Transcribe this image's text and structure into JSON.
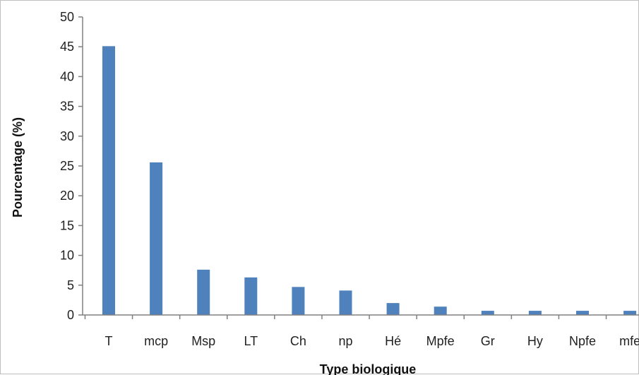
{
  "chart_data": {
    "type": "bar",
    "xlabel": "Type biologique",
    "ylabel": "Pourcentage (%)",
    "ylim": [
      0,
      50
    ],
    "yticks": [
      0,
      5,
      10,
      15,
      20,
      25,
      30,
      35,
      40,
      45,
      50
    ],
    "categories": [
      "T",
      "mcp",
      "Msp",
      "LT",
      "Ch",
      "np",
      "Hé",
      "Mpfe",
      "Gr",
      "Hy",
      "Npfe",
      "mfe"
    ],
    "values": [
      45.1,
      25.6,
      7.6,
      6.3,
      4.7,
      4.1,
      2.0,
      1.4,
      0.7,
      0.7,
      0.7,
      0.7
    ],
    "grid": false,
    "legend": "none",
    "bar_color": "#4f81bd",
    "axis_color": "#808080"
  }
}
